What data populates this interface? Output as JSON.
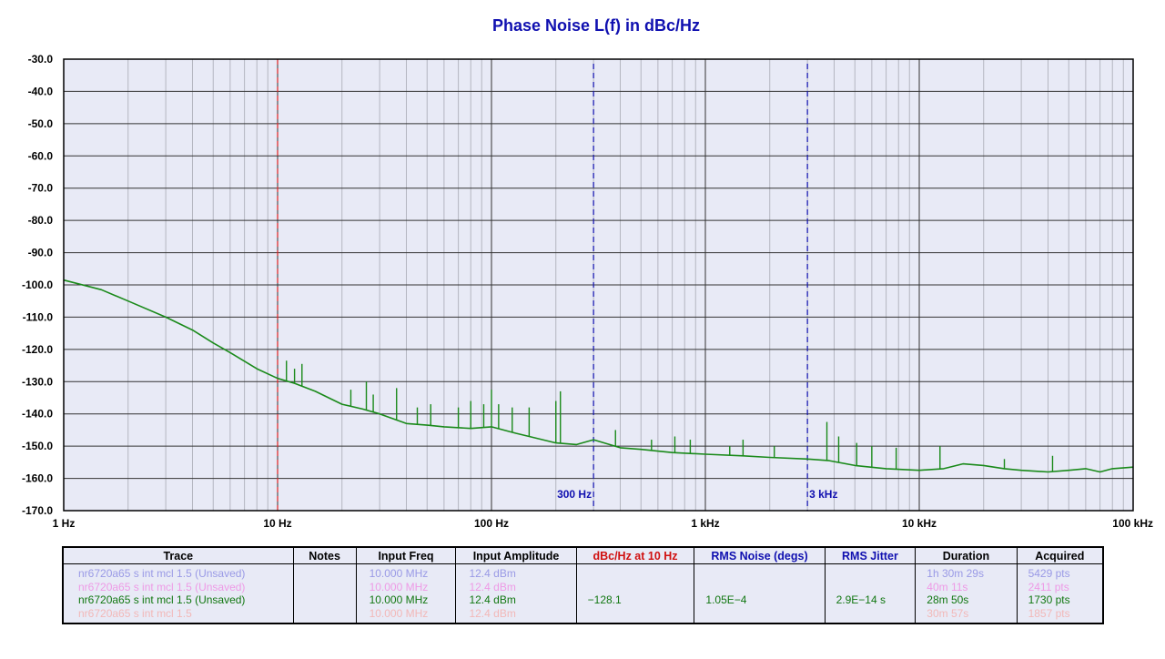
{
  "chart_data": {
    "type": "line",
    "title": "Phase Noise L(f) in dBc/Hz",
    "xscale": "log",
    "xlim": [
      1,
      100000
    ],
    "ylim": [
      -170,
      -30
    ],
    "grid": true,
    "y_ticks": [
      "-30.0",
      "-40.0",
      "-50.0",
      "-60.0",
      "-70.0",
      "-80.0",
      "-90.0",
      "-100.0",
      "-110.0",
      "-120.0",
      "-130.0",
      "-140.0",
      "-150.0",
      "-160.0",
      "-170.0"
    ],
    "x_ticks": [
      {
        "value": 1,
        "label": "1 Hz"
      },
      {
        "value": 10,
        "label": "10 Hz"
      },
      {
        "value": 100,
        "label": "100 Hz"
      },
      {
        "value": 1000,
        "label": "1 kHz"
      },
      {
        "value": 10000,
        "label": "10 kHz"
      },
      {
        "value": 100000,
        "label": "100 kHz"
      }
    ],
    "markers": [
      {
        "x": 10,
        "color": "#e02020",
        "label": ""
      },
      {
        "x": 300,
        "color": "#1010b0",
        "label": "300 Hz"
      },
      {
        "x": 3000,
        "color": "#1010b0",
        "label": "3 kHz"
      }
    ],
    "series": [
      {
        "color": "#1a8a1a",
        "x": [
          1,
          1.5,
          2,
          3,
          4,
          5,
          6,
          8,
          10,
          12,
          15,
          20,
          25,
          30,
          40,
          50,
          60,
          80,
          100,
          130,
          150,
          200,
          250,
          300,
          400,
          500,
          700,
          1000,
          1500,
          2000,
          3000,
          3800,
          5000,
          7000,
          10000,
          13000,
          16000,
          20000,
          25000,
          30000,
          40000,
          50000,
          60000,
          70000,
          80000,
          100000
        ],
        "y": [
          -98.5,
          -101.5,
          -105,
          -110,
          -114,
          -118,
          -121,
          -126,
          -129,
          -130.5,
          -133,
          -137,
          -138.5,
          -140,
          -143,
          -143.5,
          -144,
          -144.5,
          -144,
          -146,
          -147,
          -149,
          -149.5,
          -148,
          -150.5,
          -151,
          -152,
          -152.5,
          -153,
          -153.5,
          -154,
          -154.5,
          -156,
          -157,
          -157.5,
          -157,
          -155.5,
          -156,
          -157,
          -157.5,
          -158,
          -157.5,
          -157,
          -158,
          -157,
          -156.5
        ]
      }
    ],
    "spikes": [
      {
        "x": 11,
        "y": -123.5
      },
      {
        "x": 12,
        "y": -126
      },
      {
        "x": 13,
        "y": -124.5
      },
      {
        "x": 22,
        "y": -132.5
      },
      {
        "x": 26,
        "y": -130
      },
      {
        "x": 28,
        "y": -134
      },
      {
        "x": 36,
        "y": -132
      },
      {
        "x": 45,
        "y": -138
      },
      {
        "x": 52,
        "y": -137
      },
      {
        "x": 70,
        "y": -138
      },
      {
        "x": 80,
        "y": -136
      },
      {
        "x": 92,
        "y": -137
      },
      {
        "x": 100,
        "y": -132.5
      },
      {
        "x": 108,
        "y": -137
      },
      {
        "x": 125,
        "y": -138
      },
      {
        "x": 150,
        "y": -138
      },
      {
        "x": 200,
        "y": -136
      },
      {
        "x": 210,
        "y": -133
      },
      {
        "x": 380,
        "y": -145
      },
      {
        "x": 560,
        "y": -148
      },
      {
        "x": 720,
        "y": -147
      },
      {
        "x": 850,
        "y": -148
      },
      {
        "x": 1300,
        "y": -150
      },
      {
        "x": 1500,
        "y": -148
      },
      {
        "x": 2100,
        "y": -150
      },
      {
        "x": 3700,
        "y": -142.5
      },
      {
        "x": 4200,
        "y": -147
      },
      {
        "x": 5100,
        "y": -149
      },
      {
        "x": 6000,
        "y": -150
      },
      {
        "x": 7800,
        "y": -150.5
      },
      {
        "x": 12500,
        "y": -150
      },
      {
        "x": 25000,
        "y": -154
      },
      {
        "x": 42000,
        "y": -153
      }
    ]
  },
  "legend": {
    "headers": [
      {
        "text": "Trace",
        "color": "#000000"
      },
      {
        "text": "Notes",
        "color": "#000000"
      },
      {
        "text": "Input Freq",
        "color": "#000000"
      },
      {
        "text": "Input Amplitude",
        "color": "#000000"
      },
      {
        "text": "dBc/Hz at 10 Hz",
        "color": "#d01010"
      },
      {
        "text": "RMS Noise (degs)",
        "color": "#1010b0"
      },
      {
        "text": "RMS Jitter",
        "color": "#1010b0"
      },
      {
        "text": "Duration",
        "color": "#000000"
      },
      {
        "text": "Acquired",
        "color": "#000000"
      }
    ],
    "rows": [
      {
        "color": "#9a9ae6",
        "trace": "nr6720a65 s int mcl 1.5 (Unsaved)",
        "notes": "",
        "freq": "10.000 MHz",
        "amp": "12.4 dBm",
        "dbc": "",
        "rms_noise": "",
        "jitter": "",
        "duration": "1h 30m 29s",
        "acquired": "5429 pts"
      },
      {
        "color": "#ee9ae6",
        "trace": "nr6720a65 s int mcl 1.5 (Unsaved)",
        "notes": "",
        "freq": "10.000 MHz",
        "amp": "12.4 dBm",
        "dbc": "",
        "rms_noise": "",
        "jitter": "",
        "duration": "40m 11s",
        "acquired": "2411 pts"
      },
      {
        "color": "#117711",
        "trace": "nr6720a65 s int mcl 1.5 (Unsaved)",
        "notes": "",
        "freq": "10.000 MHz",
        "amp": "12.4 dBm",
        "dbc": "−128.1",
        "rms_noise": "1.05E−4",
        "jitter": "2.9E−14 s",
        "duration": "28m 50s",
        "acquired": "1730 pts"
      },
      {
        "color": "#f2b8b8",
        "trace": "nr6720a65 s int mcl 1.5",
        "notes": "",
        "freq": "10.000 MHz",
        "amp": "12.4 dBm",
        "dbc": "",
        "rms_noise": "",
        "jitter": "",
        "duration": "30m 57s",
        "acquired": "1857 pts"
      }
    ]
  }
}
